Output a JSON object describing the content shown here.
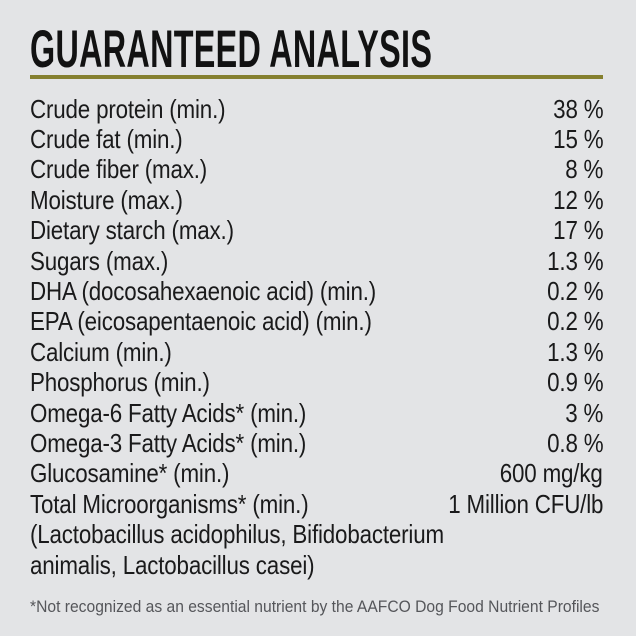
{
  "page": {
    "background_color": "#e3e4e6",
    "accent_color": "#85802f",
    "text_color": "#1a1a1b"
  },
  "header": {
    "title": "GUARANTEED ANALYSIS"
  },
  "analysis": {
    "rows": [
      {
        "label": "Crude protein (min.)",
        "value": "38 %"
      },
      {
        "label": "Crude fat (min.)",
        "value": "15 %"
      },
      {
        "label": "Crude fiber (max.)",
        "value": "8 %"
      },
      {
        "label": "Moisture (max.)",
        "value": "12 %"
      },
      {
        "label": "Dietary starch (max.)",
        "value": "17 %"
      },
      {
        "label": "Sugars (max.)",
        "value": "1.3 %"
      },
      {
        "label": "DHA (docosahexaenoic acid) (min.)",
        "value": "0.2 %"
      },
      {
        "label": "EPA (eicosapentaenoic acid) (min.)",
        "value": "0.2 %"
      },
      {
        "label": "Calcium (min.)",
        "value": "1.3 %"
      },
      {
        "label": "Phosphorus (min.)",
        "value": "0.9 %"
      },
      {
        "label": "Omega-6 Fatty Acids* (min.)",
        "value": "3 %"
      },
      {
        "label": "Omega-3 Fatty Acids* (min.)",
        "value": "0.8 %"
      },
      {
        "label": "Glucosamine* (min.)",
        "value": "600 mg/kg"
      },
      {
        "label": "Total Microorganisms* (min.)",
        "value": "1 Million CFU/lb"
      }
    ],
    "continuation_lines": [
      "(Lactobacillus acidophilus, Bifidobacterium",
      "animalis, Lactobacillus casei)"
    ]
  },
  "footnote": {
    "text": "*Not recognized as an essential nutrient by the AAFCO Dog Food Nutrient Profiles"
  }
}
